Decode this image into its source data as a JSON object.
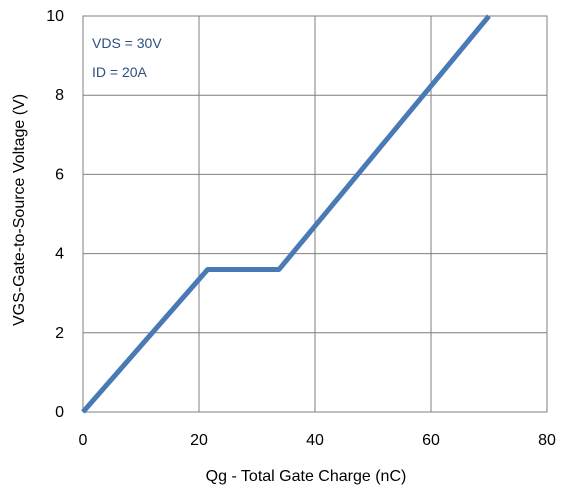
{
  "chart_data": {
    "type": "line",
    "title": "",
    "xlabel": "Qg - Total Gate Charge (nC)",
    "ylabel": "VGS-Gate-to-Source Voltage (V)",
    "xlim": [
      0,
      80
    ],
    "ylim": [
      0,
      10
    ],
    "xticks": [
      0,
      20,
      40,
      60,
      80
    ],
    "yticks": [
      0,
      2,
      4,
      6,
      8,
      10
    ],
    "grid": true,
    "annotations": [
      "VDS = 30V",
      "ID = 20A"
    ],
    "series": [
      {
        "color": "#4a7ab5",
        "x": [
          0,
          21.5,
          33.8,
          70
        ],
        "y": [
          0,
          3.6,
          3.6,
          10
        ]
      }
    ]
  }
}
